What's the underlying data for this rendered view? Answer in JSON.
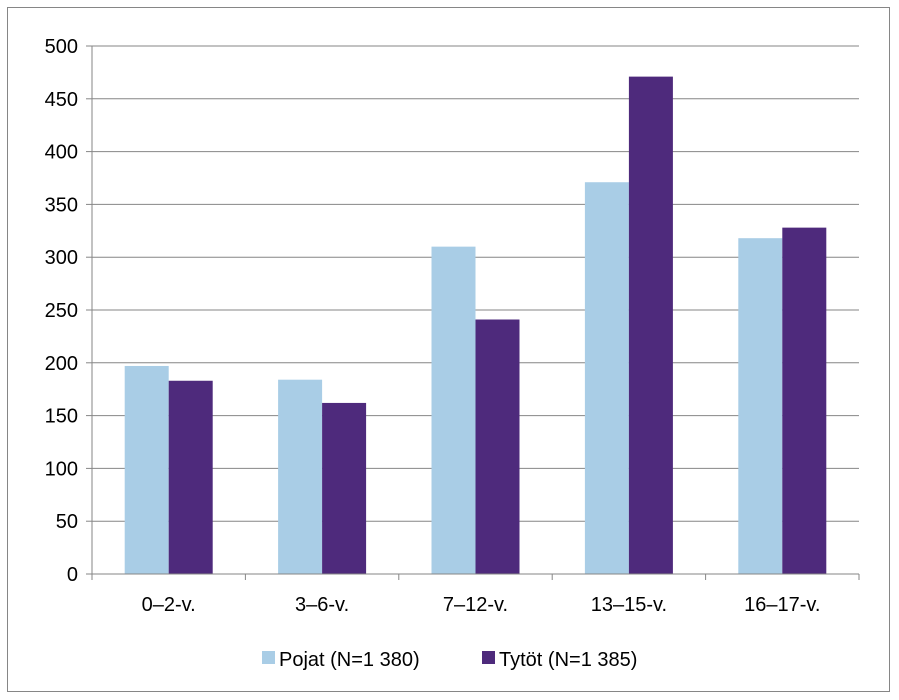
{
  "chart_data": {
    "type": "bar",
    "categories": [
      "0–2-v.",
      "3–6-v.",
      "7–12-v.",
      "13–15-v.",
      "16–17-v."
    ],
    "series": [
      {
        "name": "Pojat (N=1 380)",
        "values": [
          197,
          184,
          310,
          371,
          318
        ],
        "color": "#a9cde6"
      },
      {
        "name": "Tytöt (N=1 385)",
        "values": [
          183,
          162,
          241,
          471,
          328
        ],
        "color": "#4e2a7c"
      }
    ],
    "title": "",
    "xlabel": "",
    "ylabel": "",
    "ylim": [
      0,
      500
    ],
    "yticks": [
      0,
      50,
      100,
      150,
      200,
      250,
      300,
      350,
      400,
      450,
      500
    ],
    "grid": true,
    "legend_position": "bottom"
  },
  "colors": {
    "gridline": "#868686",
    "axis": "#868686",
    "frame": "#868686"
  }
}
